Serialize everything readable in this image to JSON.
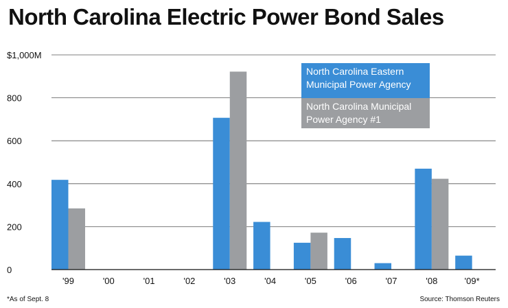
{
  "chart_data": {
    "type": "bar",
    "title": "North Carolina Electric Power Bond Sales",
    "categories": [
      "'99",
      "'00",
      "'01",
      "'02",
      "'03",
      "'04",
      "'05",
      "'06",
      "'07",
      "'08",
      "'09*"
    ],
    "series": [
      {
        "name": "North Carolina Eastern Municipal Power Agency",
        "legend_lines": [
          "North Carolina Eastern",
          "Municipal Power Agency"
        ],
        "color": "#3a8dd6",
        "values": [
          418,
          0,
          0,
          0,
          707,
          222,
          125,
          147,
          30,
          470,
          65
        ]
      },
      {
        "name": "North Carolina Municipal Power Agency #1",
        "legend_lines": [
          "North Carolina Municipal",
          "Power Agency #1"
        ],
        "color": "#9c9ea1",
        "values": [
          285,
          0,
          0,
          0,
          922,
          0,
          172,
          0,
          0,
          423,
          0
        ]
      }
    ],
    "yticks": [
      0,
      200,
      400,
      600,
      800,
      1000
    ],
    "ytick_labels": [
      "0",
      "200",
      "400",
      "600",
      "800",
      "$1,000M"
    ],
    "ylim": [
      0,
      1000
    ],
    "grid": true,
    "legend_position": "top-right",
    "xlabel": "",
    "ylabel": ""
  },
  "footnote": "*As of Sept. 8",
  "source": "Source: Thomson Reuters"
}
